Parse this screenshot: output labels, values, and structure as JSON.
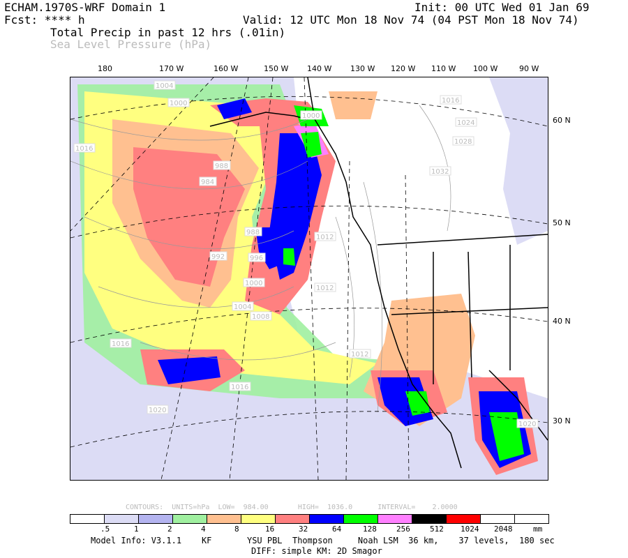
{
  "header": {
    "model": "ECHAM.1970S-WRF Domain 1",
    "fcst": "Fcst: **** h",
    "init": "Init: 00 UTC Wed 01 Jan 69",
    "valid": "Valid: 12 UTC Mon 18 Nov 74 (04 PST Mon 18 Nov 74)",
    "field1": "Total Precip in past 12 hrs (.01in)",
    "field2": "Sea Level Pressure (hPa)"
  },
  "lon_labels": [
    "180",
    "170 W",
    "160 W",
    "150 W",
    "140 W",
    "130 W",
    "120 W",
    "110 W",
    "100 W",
    "90 W"
  ],
  "lat_labels": [
    "60 N",
    "50 N",
    "40 N",
    "30 N"
  ],
  "pressure_labels": [
    "1004",
    "1000",
    "1016",
    "988",
    "984",
    "992",
    "988",
    "996",
    "1000",
    "1004",
    "1008",
    "1012",
    "1016",
    "1020",
    "1012",
    "1016",
    "1000",
    "1012",
    "1016",
    "1024",
    "1028",
    "1032",
    "1020"
  ],
  "contours_info": "CONTOURS:  UNITS=hPa  LOW=  984.00       HIGH=  1036.0      INTERVAL=    2.0000",
  "colorbar": {
    "colors": [
      "#ffffff",
      "#dcdcf5",
      "#b4b4f0",
      "#a0f0a0",
      "#ffc090",
      "#ffff80",
      "#ff8080",
      "#0000ff",
      "#00ff00",
      "#ff80ff",
      "#000000",
      "#ff0000",
      "#ffffff",
      "#ffffff"
    ],
    "labels": [
      ".5",
      "1",
      "2",
      "4",
      "8",
      "16",
      "32",
      "64",
      "128",
      "256",
      "512",
      "1024",
      "2048"
    ],
    "units": "mm"
  },
  "footer": {
    "line1": "Model Info: V3.1.1    KF       YSU PBL  Thompson     Noah LSM  36 km,    37 levels,  180 sec",
    "line2": "DIFF: simple KM: 2D Smagor"
  }
}
